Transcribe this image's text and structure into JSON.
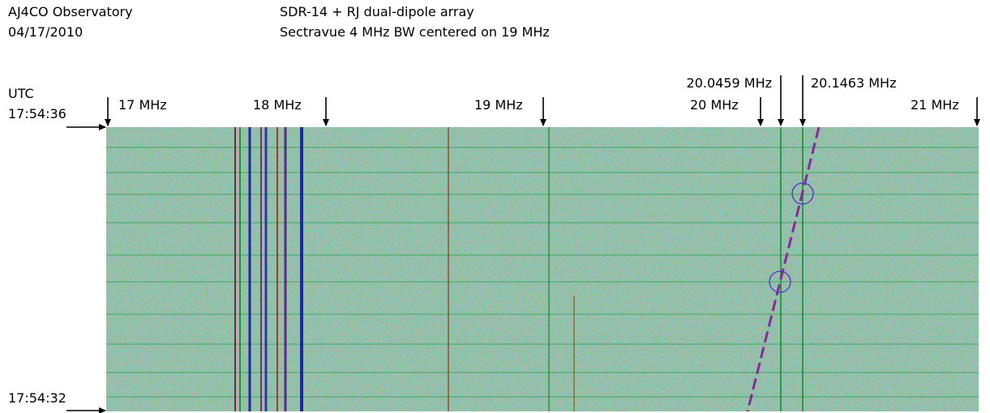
{
  "header": {
    "observatory": "AJ4CO Observatory",
    "date": "04/17/2010",
    "setup": "SDR-14 + RJ dual-dipole array",
    "settings": "Sectravue 4 MHz BW centered on 19 MHz"
  },
  "frequency_markers": [
    "17 MHz",
    "18 MHz",
    "19 MHz",
    "20 MHz",
    "20.0459 MHz",
    "20.1463 MHz",
    "21 MHz"
  ],
  "time_labels": {
    "utc": "UTC",
    "start": "17:54:36",
    "end": "17:54:32"
  }
}
